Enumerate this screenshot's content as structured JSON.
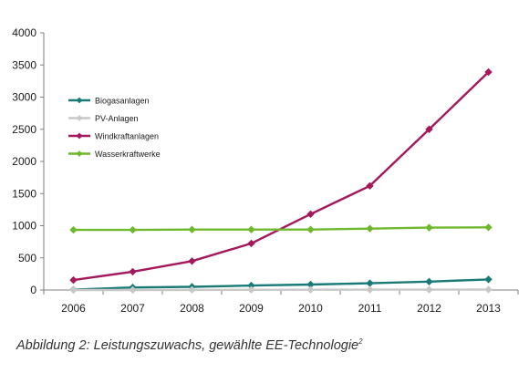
{
  "chart_data": {
    "type": "line",
    "categories": [
      "2006",
      "2007",
      "2008",
      "2009",
      "2010",
      "2011",
      "2012",
      "2013"
    ],
    "ylim": [
      0,
      4000
    ],
    "yticks": [
      0,
      500,
      1000,
      1500,
      2000,
      2500,
      3000,
      3500,
      4000
    ],
    "grid": false,
    "legend_position": "top-left",
    "series": [
      {
        "name": "Biogasanlagen",
        "color": "#1a7a78",
        "values": [
          5,
          40,
          50,
          70,
          85,
          105,
          130,
          165
        ]
      },
      {
        "name": "PV-Anlagen",
        "color": "#c8c8c8",
        "values": [
          0,
          0,
          2,
          3,
          4,
          5,
          6,
          7
        ]
      },
      {
        "name": "Windkraftanlagen",
        "color": "#a3195b",
        "values": [
          155,
          285,
          450,
          725,
          1180,
          1620,
          2500,
          3390
        ]
      },
      {
        "name": "Wasserkraftwerke",
        "color": "#6fb82d",
        "values": [
          935,
          935,
          940,
          940,
          940,
          955,
          970,
          975
        ]
      }
    ]
  },
  "caption": {
    "text": "Abbildung 2: Leistungszuwachs, gewählte EE-Technologie",
    "superscript": "2"
  }
}
